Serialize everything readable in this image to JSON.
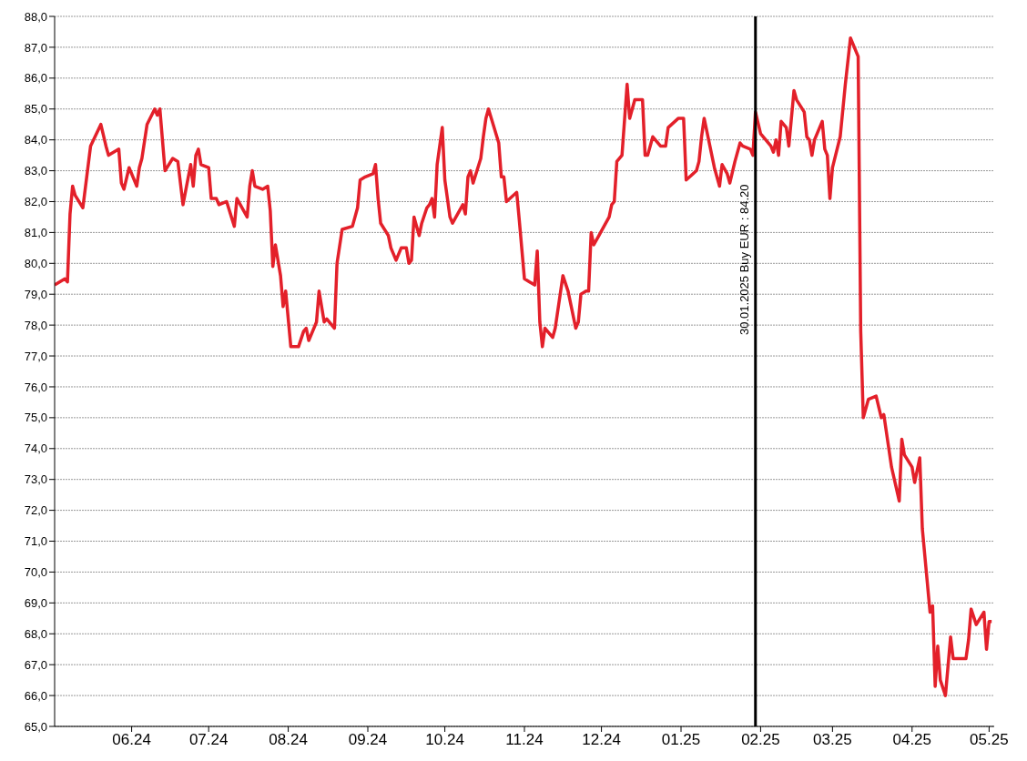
{
  "chart_data": {
    "type": "line",
    "color": "#e3202a",
    "line_style": "solid",
    "marker": "none",
    "grid": "y",
    "x": [
      "2024-05-02",
      "2024-05-06",
      "2024-05-07",
      "2024-05-08",
      "2024-05-09",
      "2024-05-10",
      "2024-05-13",
      "2024-05-16",
      "2024-05-20",
      "2024-05-22",
      "2024-05-23",
      "2024-05-27",
      "2024-05-28",
      "2024-05-29",
      "2024-05-31",
      "2024-06-03",
      "2024-06-04",
      "2024-06-05",
      "2024-06-07",
      "2024-06-10",
      "2024-06-11",
      "2024-06-12",
      "2024-06-14",
      "2024-06-17",
      "2024-06-19",
      "2024-06-21",
      "2024-06-24",
      "2024-06-25",
      "2024-06-26",
      "2024-06-27",
      "2024-06-28",
      "2024-07-01",
      "2024-07-02",
      "2024-07-04",
      "2024-07-05",
      "2024-07-08",
      "2024-07-11",
      "2024-07-12",
      "2024-07-16",
      "2024-07-17",
      "2024-07-18",
      "2024-07-19",
      "2024-07-22",
      "2024-07-24",
      "2024-07-25",
      "2024-07-26",
      "2024-07-27",
      "2024-07-29",
      "2024-07-30",
      "2024-07-31",
      "2024-08-02",
      "2024-08-05",
      "2024-08-07",
      "2024-08-08",
      "2024-08-09",
      "2024-08-12",
      "2024-08-13",
      "2024-08-15",
      "2024-08-16",
      "2024-08-19",
      "2024-08-20",
      "2024-08-22",
      "2024-08-26",
      "2024-08-28",
      "2024-08-29",
      "2024-08-31",
      "2024-09-03",
      "2024-09-04",
      "2024-09-05",
      "2024-09-06",
      "2024-09-09",
      "2024-09-10",
      "2024-09-12",
      "2024-09-14",
      "2024-09-16",
      "2024-09-17",
      "2024-09-18",
      "2024-09-19",
      "2024-09-21",
      "2024-09-22",
      "2024-09-24",
      "2024-09-25",
      "2024-09-26",
      "2024-09-27",
      "2024-09-28",
      "2024-09-30",
      "2024-10-01",
      "2024-10-02",
      "2024-10-03",
      "2024-10-04",
      "2024-10-08",
      "2024-10-09",
      "2024-10-10",
      "2024-10-11",
      "2024-10-12",
      "2024-10-15",
      "2024-10-16",
      "2024-10-17",
      "2024-10-18",
      "2024-10-22",
      "2024-10-23",
      "2024-10-24",
      "2024-10-25",
      "2024-10-29",
      "2024-10-30",
      "2024-11-01",
      "2024-11-03",
      "2024-11-05",
      "2024-11-06",
      "2024-11-07",
      "2024-11-08",
      "2024-11-09",
      "2024-11-12",
      "2024-11-13",
      "2024-11-16",
      "2024-11-18",
      "2024-11-21",
      "2024-11-22",
      "2024-11-23",
      "2024-11-25",
      "2024-11-26",
      "2024-11-27",
      "2024-11-28",
      "2024-11-30",
      "2024-12-04",
      "2024-12-05",
      "2024-12-06",
      "2024-12-07",
      "2024-12-09",
      "2024-12-11",
      "2024-12-12",
      "2024-12-14",
      "2024-12-17",
      "2024-12-18",
      "2024-12-19",
      "2024-12-21",
      "2024-12-24",
      "2024-12-26",
      "2024-12-27",
      "2024-12-31",
      "2025-01-02",
      "2025-01-03",
      "2025-01-07",
      "2025-01-08",
      "2025-01-09",
      "2025-01-10",
      "2025-01-14",
      "2025-01-16",
      "2025-01-17",
      "2025-01-19",
      "2025-01-20",
      "2025-01-22",
      "2025-01-24",
      "2025-01-25",
      "2025-01-28",
      "2025-01-29",
      "2025-01-30",
      "2025-02-01",
      "2025-02-03",
      "2025-02-05",
      "2025-02-06",
      "2025-02-07",
      "2025-02-08",
      "2025-02-09",
      "2025-02-11",
      "2025-02-12",
      "2025-02-14",
      "2025-02-15",
      "2025-02-18",
      "2025-02-19",
      "2025-02-20",
      "2025-02-21",
      "2025-02-22",
      "2025-02-25",
      "2025-02-26",
      "2025-02-27",
      "2025-02-28",
      "2025-03-01",
      "2025-03-04",
      "2025-03-06",
      "2025-03-08",
      "2025-03-11",
      "2025-03-12",
      "2025-03-13",
      "2025-03-15",
      "2025-03-18",
      "2025-03-20",
      "2025-03-21",
      "2025-03-24",
      "2025-03-27",
      "2025-03-28",
      "2025-03-29",
      "2025-04-01",
      "2025-04-02",
      "2025-04-04",
      "2025-04-05",
      "2025-04-08",
      "2025-04-09",
      "2025-04-10",
      "2025-04-11",
      "2025-04-12",
      "2025-04-14",
      "2025-04-16",
      "2025-04-17",
      "2025-04-19",
      "2025-04-22",
      "2025-04-23",
      "2025-04-24",
      "2025-04-26",
      "2025-04-29",
      "2025-04-30",
      "2025-05-01",
      "2025-05-02"
    ],
    "values": [
      79.3,
      79.5,
      79.4,
      81.6,
      82.5,
      82.2,
      81.8,
      83.8,
      84.5,
      83.8,
      83.5,
      83.7,
      82.6,
      82.4,
      83.1,
      82.5,
      83.1,
      83.4,
      84.5,
      85.0,
      84.8,
      85.0,
      83.0,
      83.4,
      83.3,
      81.9,
      83.2,
      82.5,
      83.5,
      83.7,
      83.2,
      83.1,
      82.1,
      82.1,
      81.9,
      82.0,
      81.2,
      82.1,
      81.5,
      82.5,
      83.0,
      82.5,
      82.4,
      82.5,
      81.7,
      79.9,
      80.6,
      79.6,
      78.6,
      79.1,
      77.3,
      77.3,
      77.8,
      77.9,
      77.5,
      78.1,
      79.1,
      78.1,
      78.2,
      77.9,
      80.0,
      81.1,
      81.2,
      81.8,
      82.7,
      82.8,
      82.9,
      83.2,
      82.1,
      81.3,
      80.9,
      80.5,
      80.1,
      80.5,
      80.5,
      80.0,
      80.1,
      81.5,
      80.9,
      81.3,
      81.8,
      81.9,
      82.1,
      81.5,
      83.2,
      84.4,
      82.7,
      82.1,
      81.5,
      81.3,
      81.9,
      81.6,
      82.8,
      83.0,
      82.6,
      83.4,
      84.1,
      84.7,
      85.0,
      83.9,
      82.8,
      82.8,
      82.0,
      82.3,
      81.4,
      79.5,
      79.4,
      79.3,
      80.4,
      78.1,
      77.3,
      77.9,
      77.6,
      77.9,
      79.6,
      79.1,
      77.9,
      78.1,
      79.0,
      79.1,
      79.1,
      81.0,
      80.6,
      80.9,
      81.5,
      81.9,
      82.0,
      83.3,
      83.5,
      85.8,
      84.7,
      85.3,
      85.3,
      83.5,
      83.5,
      84.1,
      83.8,
      83.8,
      84.4,
      84.7,
      84.7,
      82.7,
      83.0,
      83.3,
      84.1,
      84.7,
      83.1,
      82.5,
      83.2,
      82.9,
      82.6,
      83.3,
      83.9,
      83.8,
      83.7,
      83.5,
      84.9,
      84.2,
      84.0,
      83.8,
      83.6,
      84.0,
      83.5,
      84.6,
      84.4,
      83.8,
      85.6,
      85.3,
      84.9,
      84.1,
      84.0,
      83.5,
      84.0,
      84.6,
      83.7,
      83.5,
      82.1,
      83.1,
      84.1,
      85.8,
      87.3,
      86.7,
      77.8,
      75.0,
      75.6,
      75.7,
      75.0,
      75.1,
      73.4,
      72.3,
      74.3,
      73.8,
      73.4,
      72.9,
      73.7,
      71.4,
      68.7,
      68.9,
      66.3,
      67.6,
      66.5,
      66.0,
      67.9,
      67.2,
      67.2,
      67.2,
      67.8,
      68.8,
      68.3,
      68.7,
      67.5,
      68.4,
      68.4
    ],
    "xlim": [
      "2024-05-02",
      "2025-05-03"
    ],
    "xticks": [
      {
        "value": "2024-06-01",
        "label": "06.24"
      },
      {
        "value": "2024-07-01",
        "label": "07.24"
      },
      {
        "value": "2024-08-01",
        "label": "08.24"
      },
      {
        "value": "2024-09-01",
        "label": "09.24"
      },
      {
        "value": "2024-10-01",
        "label": "10.24"
      },
      {
        "value": "2024-11-01",
        "label": "11.24"
      },
      {
        "value": "2024-12-01",
        "label": "12.24"
      },
      {
        "value": "2025-01-01",
        "label": "01.25"
      },
      {
        "value": "2025-02-01",
        "label": "02.25"
      },
      {
        "value": "2025-03-01",
        "label": "03.25"
      },
      {
        "value": "2025-04-01",
        "label": "04.25"
      },
      {
        "value": "2025-05-01",
        "label": "05.25"
      }
    ],
    "ylim": [
      65,
      88
    ],
    "yticks": [
      {
        "value": 65,
        "label": "65,0"
      },
      {
        "value": 66,
        "label": "66,0"
      },
      {
        "value": 67,
        "label": "67,0"
      },
      {
        "value": 68,
        "label": "68,0"
      },
      {
        "value": 69,
        "label": "69,0"
      },
      {
        "value": 70,
        "label": "70,0"
      },
      {
        "value": 71,
        "label": "71,0"
      },
      {
        "value": 72,
        "label": "72,0"
      },
      {
        "value": 73,
        "label": "73,0"
      },
      {
        "value": 74,
        "label": "74,0"
      },
      {
        "value": 75,
        "label": "75,0"
      },
      {
        "value": 76,
        "label": "76,0"
      },
      {
        "value": 77,
        "label": "77,0"
      },
      {
        "value": 78,
        "label": "78,0"
      },
      {
        "value": 79,
        "label": "79,0"
      },
      {
        "value": 80,
        "label": "80,0"
      },
      {
        "value": 81,
        "label": "81,0"
      },
      {
        "value": 82,
        "label": "82,0"
      },
      {
        "value": 83,
        "label": "83,0"
      },
      {
        "value": 84,
        "label": "84,0"
      },
      {
        "value": 85,
        "label": "85,0"
      },
      {
        "value": 86,
        "label": "86,0"
      },
      {
        "value": 87,
        "label": "87,0"
      },
      {
        "value": 88,
        "label": "88,0"
      }
    ],
    "ref_lines": [
      {
        "axis": "x",
        "value": "2025-01-30",
        "label": "30.01.2025 Buy EUR : 84.20",
        "color": "#000000"
      }
    ]
  }
}
